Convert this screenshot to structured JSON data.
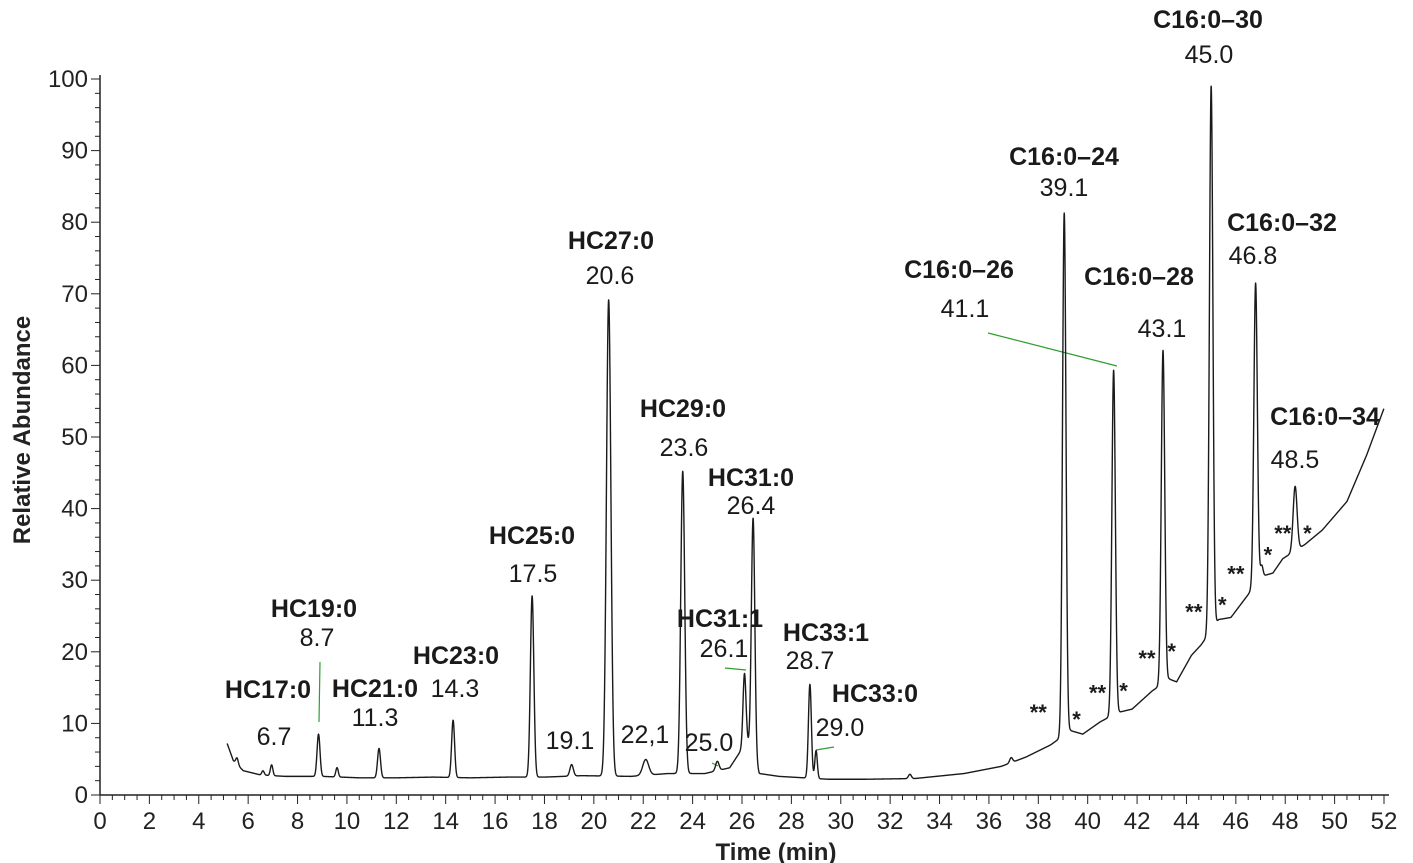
{
  "chart_data": {
    "type": "line",
    "title": "",
    "xlabel": "Time (min)",
    "ylabel": "Relative Abundance",
    "xlim": [
      0,
      52
    ],
    "ylim": [
      0,
      100
    ],
    "x_ticks": [
      "0",
      "2",
      "4",
      "6",
      "8",
      "10",
      "12",
      "14",
      "16",
      "18",
      "20",
      "22",
      "24",
      "26",
      "28",
      "30",
      "32",
      "34",
      "36",
      "38",
      "40",
      "42",
      "44",
      "46",
      "48",
      "50",
      "52"
    ],
    "y_ticks": [
      "0",
      "10",
      "20",
      "30",
      "40",
      "50",
      "60",
      "70",
      "80",
      "90",
      "100"
    ],
    "grid": false,
    "line_color": "#1a1a1a",
    "leader_color": "#2e9e2e",
    "baseline": [
      [
        5.15,
        7.2
      ],
      [
        5.4,
        4.8
      ],
      [
        5.8,
        3.4
      ],
      [
        6.5,
        2.8
      ],
      [
        7.5,
        2.6
      ],
      [
        9.0,
        2.6
      ],
      [
        10.5,
        2.4
      ],
      [
        12.0,
        2.4
      ],
      [
        13.5,
        2.5
      ],
      [
        15.0,
        2.4
      ],
      [
        16.5,
        2.5
      ],
      [
        18.0,
        2.5
      ],
      [
        19.5,
        2.7
      ],
      [
        21.5,
        2.6
      ],
      [
        23.0,
        3.0
      ],
      [
        24.5,
        3.0
      ],
      [
        25.5,
        3.8
      ],
      [
        26.2,
        7.5
      ],
      [
        26.7,
        3.0
      ],
      [
        27.5,
        2.6
      ],
      [
        28.5,
        2.4
      ],
      [
        29.5,
        2.2
      ],
      [
        31.0,
        2.2
      ],
      [
        33.0,
        2.3
      ],
      [
        35.0,
        3.0
      ],
      [
        36.5,
        4.0
      ],
      [
        37.5,
        5.3
      ],
      [
        38.5,
        7.0
      ],
      [
        39.3,
        9.0
      ],
      [
        39.8,
        8.5
      ],
      [
        40.5,
        10.2
      ],
      [
        41.2,
        11.5
      ],
      [
        41.8,
        12.0
      ],
      [
        42.6,
        14.5
      ],
      [
        43.3,
        16.2
      ],
      [
        43.6,
        15.8
      ],
      [
        44.2,
        19.5
      ],
      [
        44.6,
        21.0
      ],
      [
        45.3,
        24.5
      ],
      [
        45.8,
        24.8
      ],
      [
        46.5,
        28.0
      ],
      [
        47.0,
        30.5
      ],
      [
        47.5,
        31.0
      ],
      [
        47.9,
        33.0
      ],
      [
        48.8,
        35.0
      ],
      [
        49.5,
        37.0
      ],
      [
        50.5,
        41.0
      ],
      [
        51.3,
        47.5
      ],
      [
        52.0,
        54.0
      ]
    ],
    "peaks": [
      {
        "label": "HC17:0",
        "time": "6.7",
        "x": 6.95,
        "y": 4.2,
        "base": 2.7,
        "w": 0.05
      },
      {
        "label": "",
        "time": "",
        "x": 5.55,
        "y": 4.5,
        "base": 3.6,
        "w": 0.05
      },
      {
        "label": "",
        "time": "",
        "x": 6.6,
        "y": 3.4,
        "base": 2.8,
        "w": 0.05
      },
      {
        "label": "HC19:0",
        "time": "8.7",
        "x": 8.85,
        "y": 8.5,
        "base": 2.6,
        "w": 0.06
      },
      {
        "label": "",
        "time": "",
        "x": 9.6,
        "y": 3.9,
        "base": 2.6,
        "w": 0.05
      },
      {
        "label": "HC21:0",
        "time": "11.3",
        "x": 11.3,
        "y": 6.5,
        "base": 2.4,
        "w": 0.06
      },
      {
        "label": "HC23:0",
        "time": "14.3",
        "x": 14.3,
        "y": 10.5,
        "base": 2.5,
        "w": 0.06
      },
      {
        "label": "HC25:0",
        "time": "17.5",
        "x": 17.5,
        "y": 27.8,
        "base": 2.5,
        "w": 0.07
      },
      {
        "label": "",
        "time": "19.1",
        "x": 19.1,
        "y": 4.2,
        "base": 2.6,
        "w": 0.07
      },
      {
        "label": "HC27:0",
        "time": "20.6",
        "x": 20.6,
        "y": 69.2,
        "base": 2.7,
        "w": 0.09
      },
      {
        "label": "",
        "time": "22,1",
        "x": 22.1,
        "y": 5.0,
        "base": 2.8,
        "w": 0.12
      },
      {
        "label": "HC29:0",
        "time": "23.6",
        "x": 23.6,
        "y": 45.2,
        "base": 3.0,
        "w": 0.08
      },
      {
        "label": "",
        "time": "25.0",
        "x": 25.0,
        "y": 4.5,
        "base": 3.2,
        "w": 0.07
      },
      {
        "label": "HC31:1",
        "time": "26.1",
        "x": 26.1,
        "y": 17.0,
        "base": 7.0,
        "w": 0.06
      },
      {
        "label": "HC31:0",
        "time": "26.4",
        "x": 26.45,
        "y": 37.4,
        "base": 4.0,
        "w": 0.07
      },
      {
        "label": "HC33:1",
        "time": "28.7",
        "x": 28.75,
        "y": 15.5,
        "base": 2.4,
        "w": 0.06
      },
      {
        "label": "HC33:0",
        "time": "29.0",
        "x": 29.0,
        "y": 6.2,
        "base": 2.3,
        "w": 0.05
      },
      {
        "label": "",
        "time": "",
        "x": 32.8,
        "y": 2.9,
        "base": 2.3,
        "w": 0.06
      },
      {
        "label": "",
        "time": "",
        "x": 36.9,
        "y": 5.0,
        "base": 4.3,
        "w": 0.06
      },
      {
        "label": "C16:0–24",
        "time": "39.1",
        "x": 39.05,
        "y": 81.4,
        "base": 8.5,
        "w": 0.07
      },
      {
        "label": "C16:0–26",
        "time": "41.1",
        "x": 41.05,
        "y": 59.3,
        "base": 11.2,
        "w": 0.07
      },
      {
        "label": "C16:0–28",
        "time": "43.1",
        "x": 43.05,
        "y": 62.0,
        "base": 15.5,
        "w": 0.07
      },
      {
        "label": "C16:0–30",
        "time": "45.0",
        "x": 45.0,
        "y": 100.0,
        "base": 24.0,
        "w": 0.07
      },
      {
        "label": "C16:0–32",
        "time": "46.8",
        "x": 46.8,
        "y": 72.0,
        "base": 30.0,
        "w": 0.07
      },
      {
        "label": "C16:0–34",
        "time": "48.5",
        "x": 48.4,
        "y": 43.5,
        "base": 34.5,
        "w": 0.08
      },
      {
        "label": "",
        "time": "",
        "x": 47.05,
        "y": 32.0,
        "base": 30.5,
        "w": 0.05
      }
    ],
    "annotations": [
      {
        "text": "**",
        "x": 38.0,
        "y": 10.5
      },
      {
        "text": "*",
        "x": 39.55,
        "y": 9.5
      },
      {
        "text": "**",
        "x": 40.4,
        "y": 13.2
      },
      {
        "text": "*",
        "x": 41.45,
        "y": 13.5
      },
      {
        "text": "**",
        "x": 42.4,
        "y": 18.0
      },
      {
        "text": "*",
        "x": 43.4,
        "y": 19.0
      },
      {
        "text": "**",
        "x": 44.3,
        "y": 24.5
      },
      {
        "text": "*",
        "x": 45.45,
        "y": 25.5
      },
      {
        "text": "**",
        "x": 46.0,
        "y": 29.8
      },
      {
        "text": "*",
        "x": 47.3,
        "y": 32.5
      },
      {
        "text": "**",
        "x": 47.9,
        "y": 35.5
      },
      {
        "text": "*",
        "x": 48.9,
        "y": 35.5
      }
    ]
  }
}
